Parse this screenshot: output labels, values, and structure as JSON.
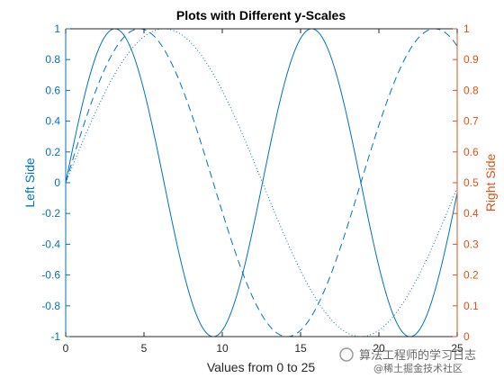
{
  "chart_data": {
    "type": "line",
    "title": "Plots with Different y-Scales",
    "xlabel": "Values from 0 to 25",
    "ylabel_left": "Left Side",
    "ylabel_right": "Right Side",
    "xlim": [
      0,
      25
    ],
    "ylim_left": [
      -1,
      1
    ],
    "ylim_right": [
      0,
      1
    ],
    "x_ticks": [
      0,
      5,
      10,
      15,
      20,
      25
    ],
    "y_left_ticks": [
      -1,
      -0.8,
      -0.6,
      -0.4,
      -0.2,
      0,
      0.2,
      0.4,
      0.6,
      0.8,
      1
    ],
    "y_right_ticks": [
      0,
      0.1,
      0.2,
      0.3,
      0.4,
      0.5,
      0.6,
      0.7,
      0.8,
      0.9,
      1
    ],
    "grid": false,
    "legend": "none",
    "series": [
      {
        "axis": "left",
        "style": "solid",
        "function": "sin(x/2)",
        "x_range": [
          0,
          25
        ],
        "y_at_x0": 0,
        "peak_x": 3.14,
        "trough_x": 9.42
      },
      {
        "axis": "left",
        "style": "dashed",
        "function": "sin(x/3)",
        "x_range": [
          0,
          25
        ],
        "y_at_x0": 0,
        "peak_x": 4.71,
        "trough_x": 14.14
      },
      {
        "axis": "left",
        "style": "dotted",
        "function": "sin(x/4)",
        "x_range": [
          0,
          25
        ],
        "y_at_x0": 0,
        "peak_x": 6.28,
        "trough_x": 18.85
      }
    ],
    "colors": {
      "left_axis": "#0072BD",
      "right_axis": "#D95319",
      "box": "#262626"
    }
  },
  "watermark": {
    "text": "算法工程师的学习日志",
    "subtext": "@稀土掘金技术社区"
  }
}
